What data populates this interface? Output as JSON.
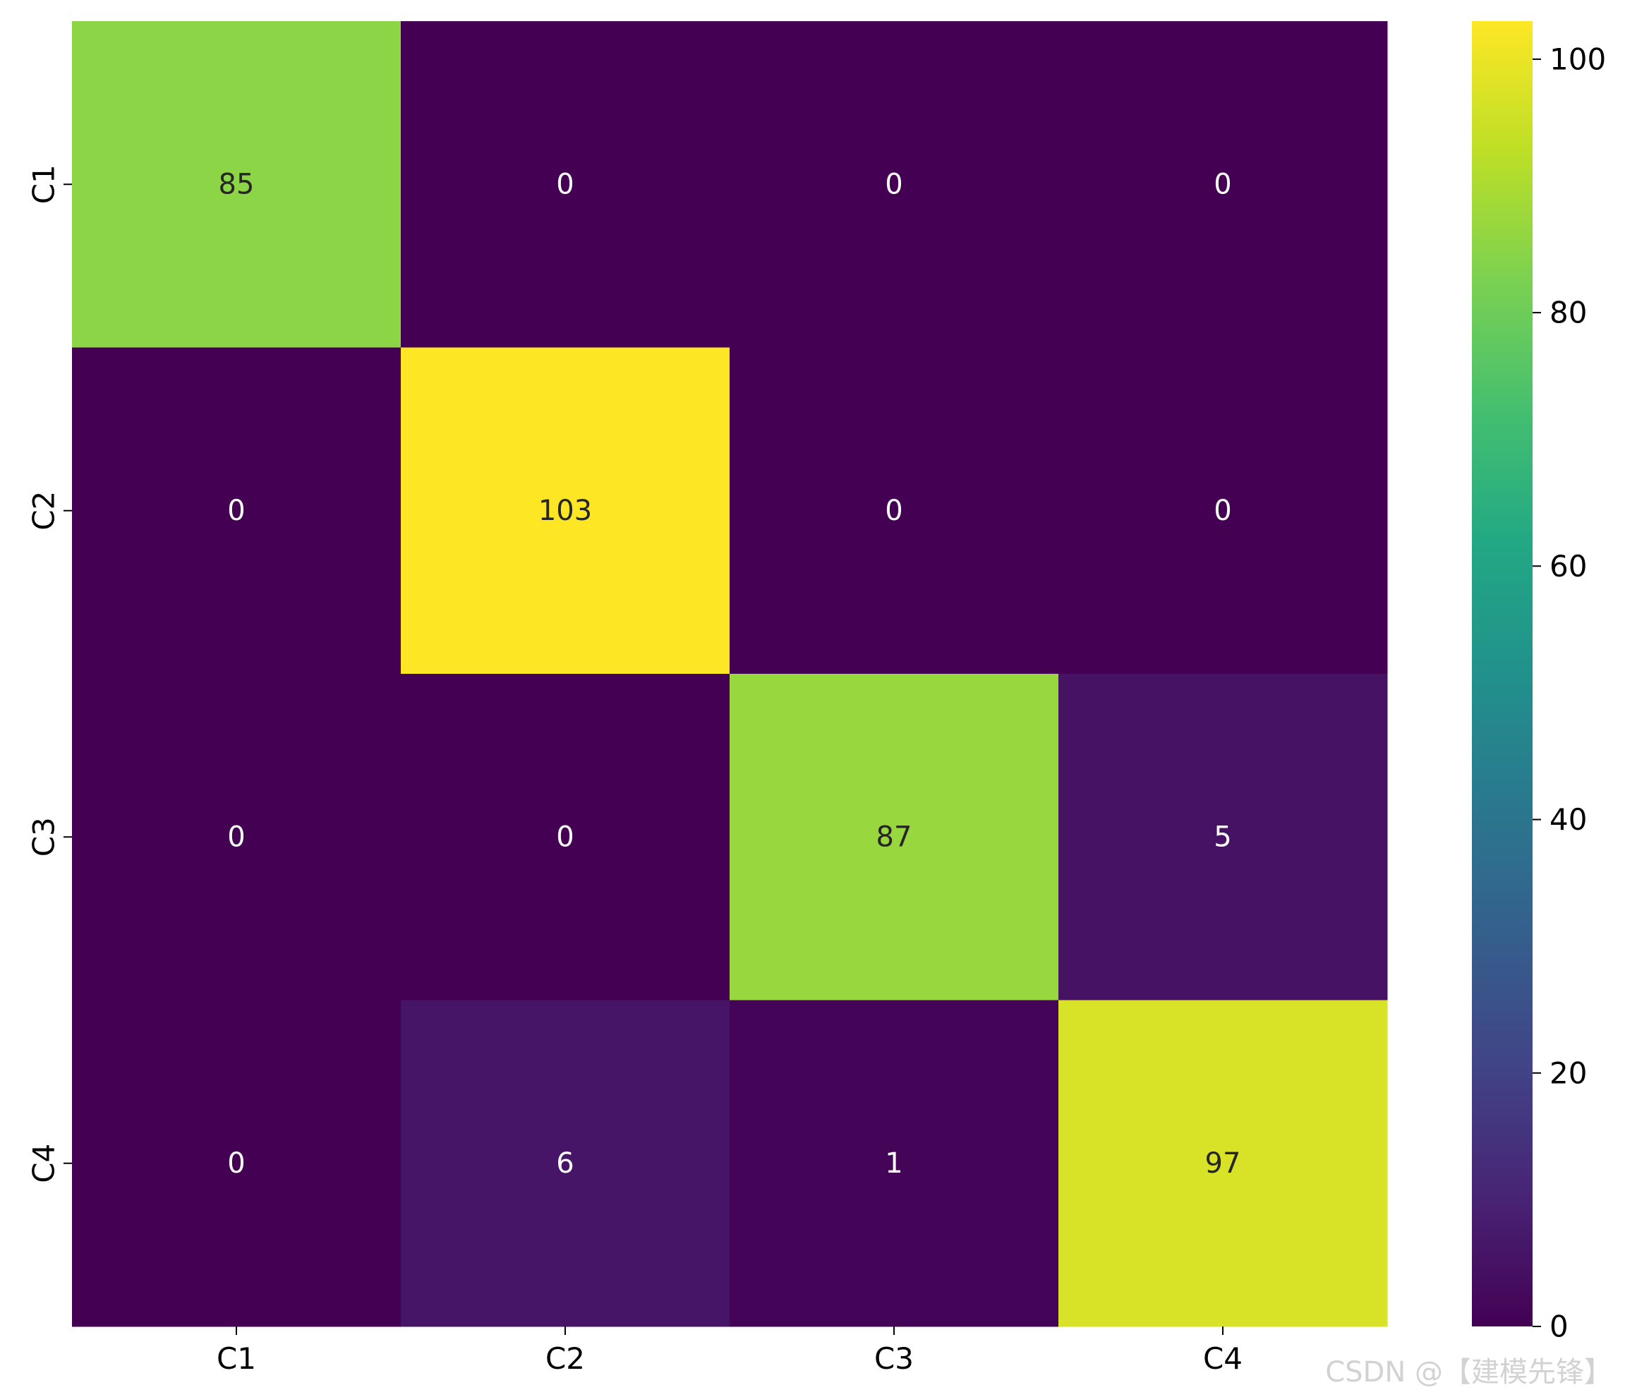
{
  "chart_data": {
    "type": "heatmap",
    "title": "",
    "xlabel": "",
    "ylabel": "",
    "x_categories": [
      "C1",
      "C2",
      "C3",
      "C4"
    ],
    "y_categories": [
      "C1",
      "C2",
      "C3",
      "C4"
    ],
    "values": [
      [
        85,
        0,
        0,
        0
      ],
      [
        0,
        103,
        0,
        0
      ],
      [
        0,
        0,
        87,
        5
      ],
      [
        0,
        6,
        1,
        97
      ]
    ],
    "colormap": "viridis",
    "colorbar": {
      "range": [
        0,
        103
      ],
      "ticks": [
        0,
        20,
        40,
        60,
        80,
        100
      ],
      "tick_labels": [
        "0",
        "20",
        "40",
        "60",
        "80",
        "100"
      ]
    },
    "annotations": true,
    "grid": false,
    "colors": {
      "low": "#440154",
      "high": "#fde725",
      "text_dark": "#262626",
      "text_light": "#ffffff"
    }
  },
  "watermark": "CSDN @【建模先锋】"
}
